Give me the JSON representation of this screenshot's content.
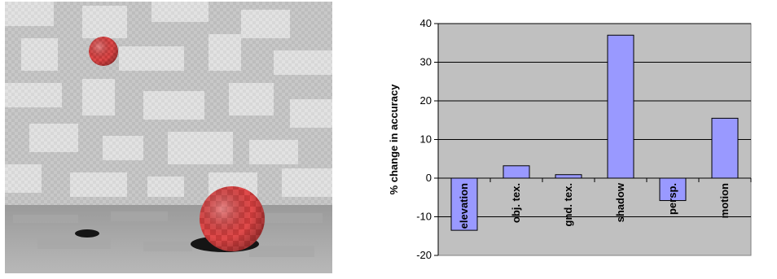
{
  "scene": {
    "description_icon": "rendered-scene-two-red-checkered-spheres"
  },
  "chart_data": {
    "type": "bar",
    "categories": [
      "elevation",
      "obj. tex.",
      "gnd. tex.",
      "shadow",
      "persp.",
      "motion"
    ],
    "values": [
      -13.5,
      3.2,
      0.9,
      37,
      -5.8,
      15.5
    ],
    "ylabel": "% change in accuracy",
    "ylim": [
      -20,
      40
    ],
    "yticks": [
      -20,
      -10,
      0,
      10,
      20,
      30,
      40
    ],
    "grid": true,
    "legend": "none",
    "colors": {
      "bar": "#9999ff",
      "plot_bg": "#c0c0c0",
      "edge": "#000000"
    }
  }
}
